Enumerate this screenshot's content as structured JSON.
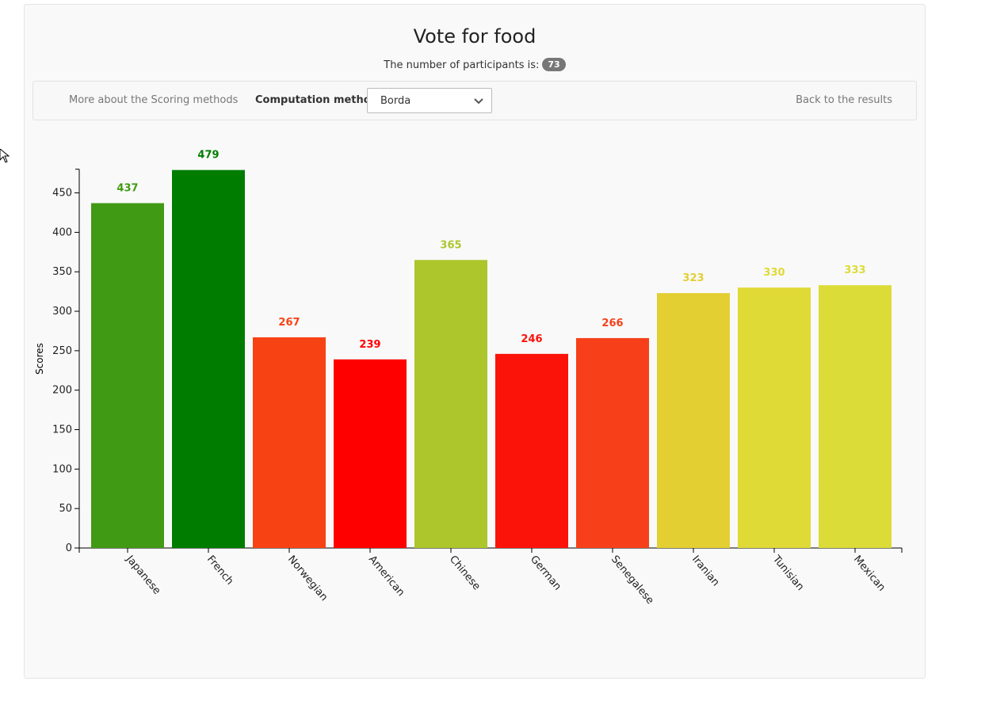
{
  "header": {
    "title": "Vote for food",
    "participants_label": "The number of participants is:",
    "participants_count": "73"
  },
  "toolbar": {
    "more_link": "More about the Scoring methods",
    "method_label": "Computation method:",
    "method_value": "Borda",
    "back_link": "Back to the results"
  },
  "chart_data": {
    "type": "bar",
    "categories": [
      "Japanese",
      "French",
      "Norwegian",
      "American",
      "Chinese",
      "German",
      "Senegalese",
      "Iranian",
      "Tunisian",
      "Mexican"
    ],
    "values": [
      437,
      479,
      267,
      239,
      365,
      246,
      266,
      323,
      330,
      333
    ],
    "colors": [
      "#419a13",
      "#007d00",
      "#f74314",
      "#ff0000",
      "#acc62c",
      "#fb1309",
      "#f7401a",
      "#e3cf32",
      "#e0da36",
      "#dcdc38"
    ],
    "title": "",
    "xlabel": "",
    "ylabel": "Scores",
    "yticks": [
      0,
      50,
      100,
      150,
      200,
      250,
      300,
      350,
      400,
      450
    ],
    "ylim": [
      0,
      480
    ],
    "grid": false,
    "legend": "none"
  }
}
